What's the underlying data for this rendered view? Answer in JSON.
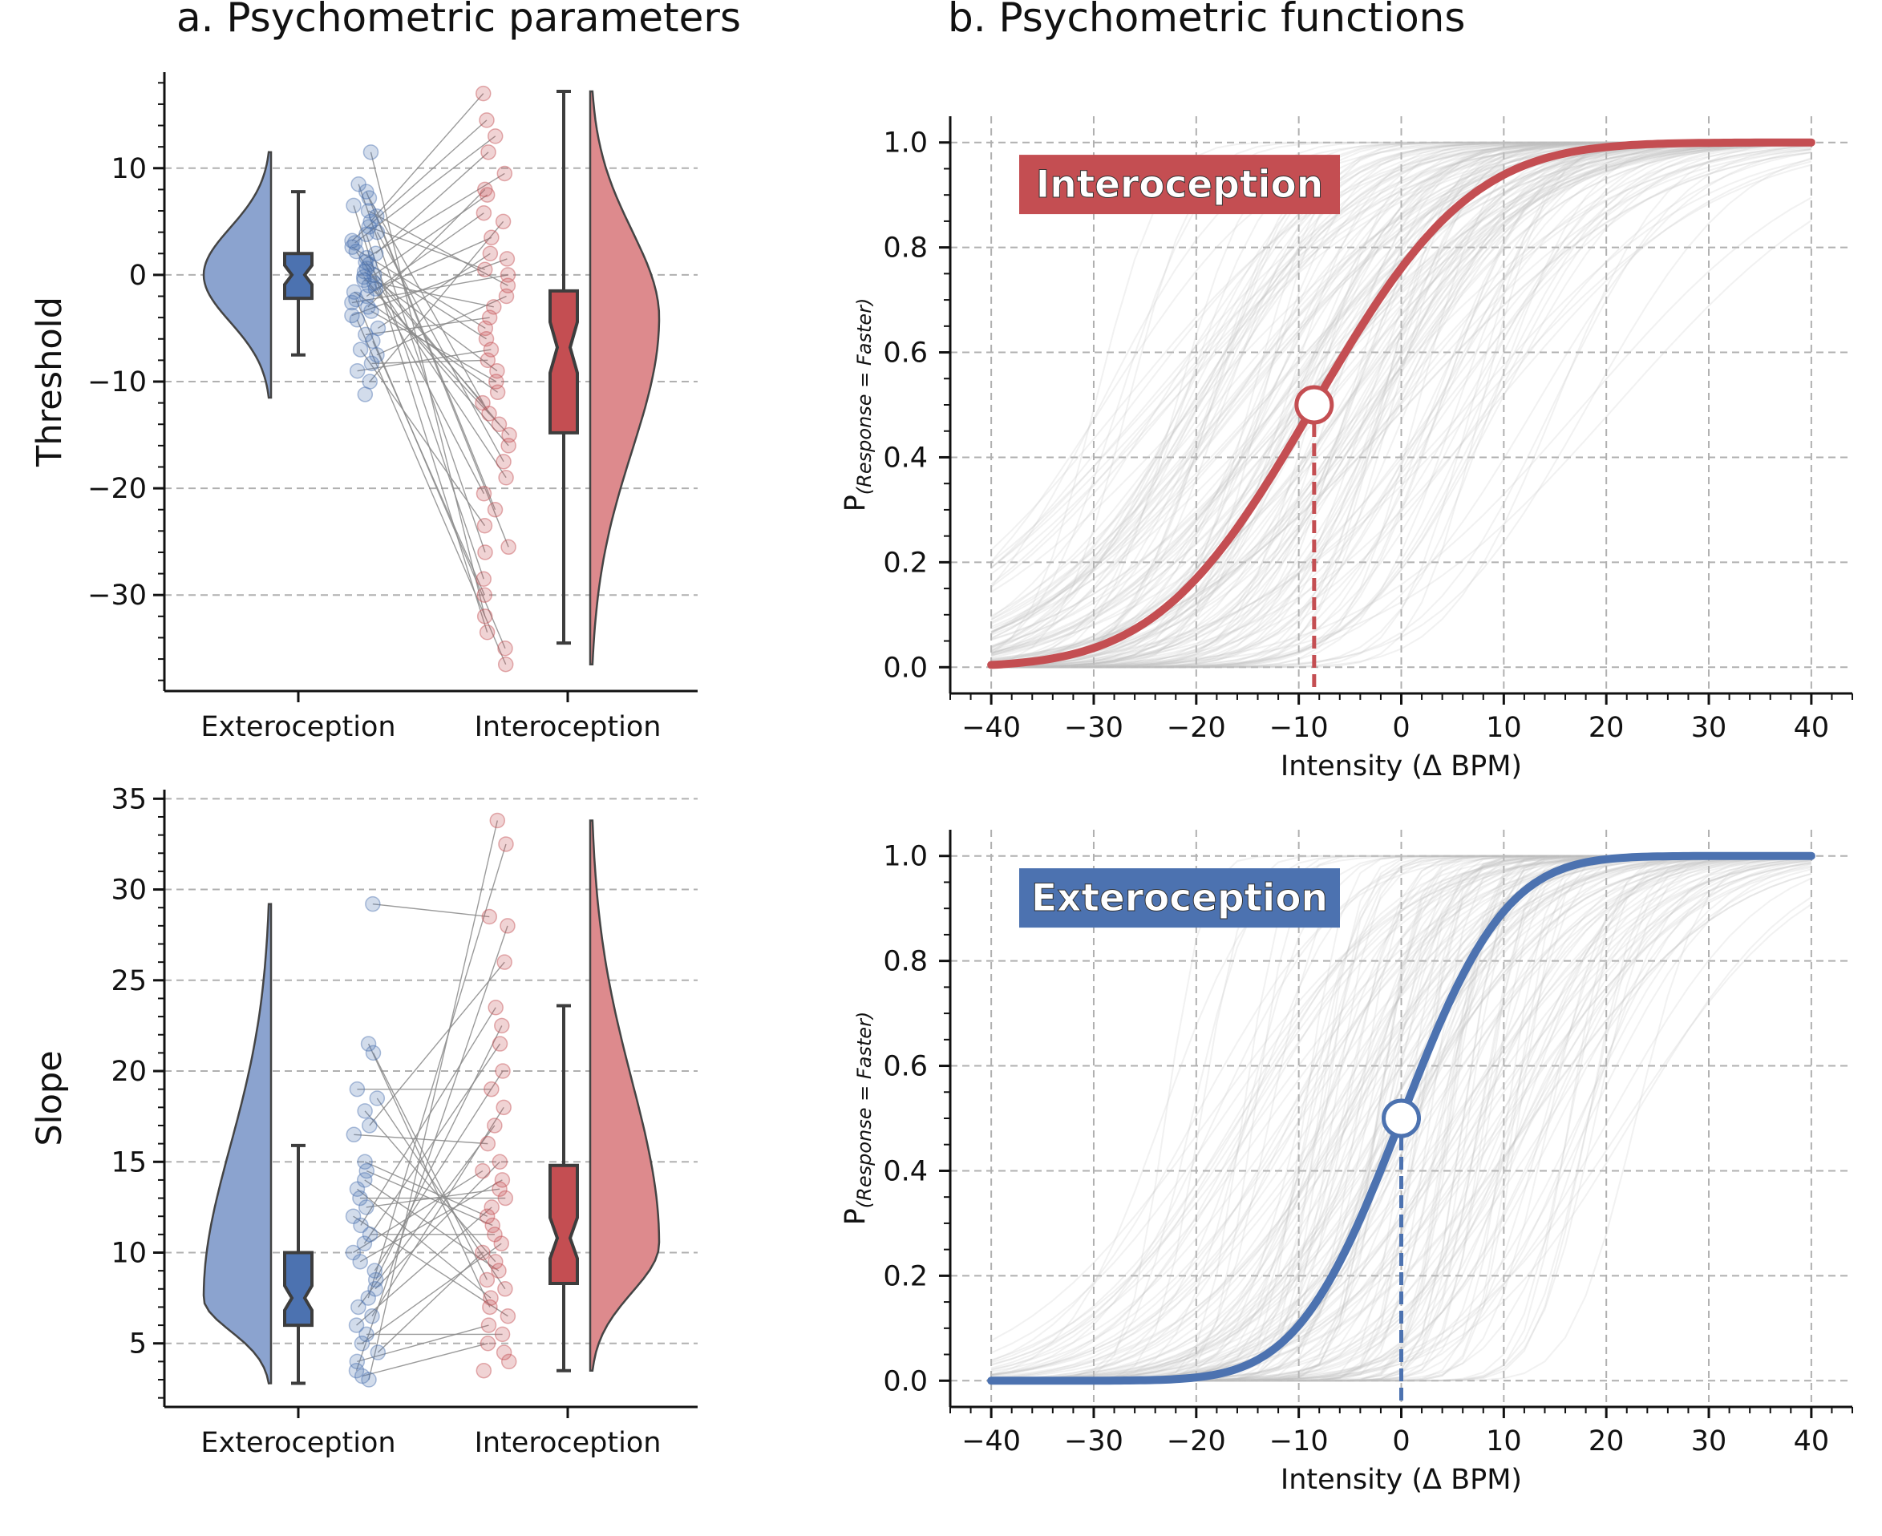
{
  "titles": {
    "left": "a. Psychometric parameters",
    "right": "b. Psychometric functions"
  },
  "colors": {
    "extero": "#4c72b0",
    "intero": "#c44e52",
    "extero_light": "#8ba3cf",
    "intero_light": "#dd8a8d",
    "grid": "#b0b0b0",
    "curves": "#bdbdbd"
  },
  "chart_data": [
    {
      "id": "threshold",
      "type": "raincloud",
      "ylabel": "Threshold",
      "categories": [
        "Exteroception",
        "Interoception"
      ],
      "yticks": [
        -30,
        -20,
        -10,
        0,
        10
      ],
      "ylim": [
        -39,
        19
      ],
      "grid": true,
      "series": [
        {
          "name": "Exteroception",
          "box": {
            "whisker_low": -7.5,
            "q1": -2.2,
            "median": 0.0,
            "q3": 2.0,
            "whisker_high": 7.8
          },
          "violin_range": [
            -11.5,
            11.5
          ],
          "points": [
            11.5,
            8.5,
            7.8,
            7.2,
            6.5,
            6.0,
            5.5,
            5.0,
            4.5,
            4.0,
            3.8,
            3.2,
            3.0,
            2.6,
            2.2,
            2.0,
            1.6,
            1.2,
            1.0,
            0.6,
            0.3,
            0.0,
            -0.2,
            -0.5,
            -0.8,
            -1.0,
            -1.3,
            -1.6,
            -2.0,
            -2.3,
            -2.6,
            -3.0,
            -3.4,
            -3.8,
            -4.2,
            -5.0,
            -5.6,
            -6.2,
            -7.0,
            -7.5,
            -8.3,
            -9.0,
            -10.0,
            -11.2
          ]
        },
        {
          "name": "Interoception",
          "box": {
            "whisker_low": -34.5,
            "q1": -14.8,
            "median": -6.8,
            "q3": -1.5,
            "whisker_high": 17.2
          },
          "violin_range": [
            -36.5,
            17.2
          ],
          "points": [
            17.0,
            14.5,
            13.0,
            11.5,
            9.5,
            8.0,
            7.5,
            5.8,
            5.0,
            3.5,
            2.0,
            1.5,
            0.5,
            0.0,
            -1.0,
            -2.0,
            -3.0,
            -4.0,
            -5.0,
            -6.0,
            -7.0,
            -8.0,
            -9.0,
            -10.0,
            -11.0,
            -12.0,
            -13.0,
            -14.0,
            -15.0,
            -16.0,
            -17.5,
            -19.0,
            -20.5,
            -22.0,
            -23.5,
            -25.5,
            -26.0,
            -28.5,
            -30.0,
            -32.0,
            -33.5,
            -35.0,
            -36.5
          ]
        }
      ]
    },
    {
      "id": "slope",
      "type": "raincloud",
      "ylabel": "Slope",
      "categories": [
        "Exteroception",
        "Interoception"
      ],
      "yticks": [
        5,
        10,
        15,
        20,
        25,
        30,
        35
      ],
      "ylim": [
        1.5,
        35.5
      ],
      "grid": true,
      "series": [
        {
          "name": "Exteroception",
          "box": {
            "whisker_low": 2.8,
            "q1": 6.0,
            "median": 7.5,
            "q3": 10.0,
            "whisker_high": 15.9
          },
          "violin_range": [
            2.8,
            29.2
          ],
          "points": [
            29.2,
            21.5,
            21.0,
            19.0,
            18.5,
            17.8,
            17.0,
            16.5,
            15.0,
            14.5,
            14.0,
            13.5,
            13.0,
            12.5,
            12.0,
            11.5,
            11.0,
            10.5,
            10.0,
            9.5,
            9.0,
            8.5,
            8.0,
            7.5,
            7.0,
            6.5,
            6.0,
            5.5,
            5.0,
            4.5,
            4.0,
            3.5,
            3.2,
            3.0
          ]
        },
        {
          "name": "Interoception",
          "box": {
            "whisker_low": 3.5,
            "q1": 8.3,
            "median": 10.8,
            "q3": 14.8,
            "whisker_high": 23.6
          },
          "violin_range": [
            3.5,
            33.8
          ],
          "points": [
            33.8,
            32.5,
            28.5,
            28.0,
            26.0,
            23.5,
            22.5,
            21.5,
            20.0,
            19.0,
            18.0,
            17.0,
            16.0,
            15.0,
            14.5,
            14.0,
            13.5,
            13.0,
            12.5,
            12.0,
            11.5,
            11.0,
            10.5,
            10.0,
            9.5,
            9.0,
            8.5,
            8.0,
            7.5,
            7.0,
            6.5,
            6.0,
            5.5,
            5.0,
            4.5,
            4.0,
            3.5
          ]
        }
      ]
    },
    {
      "id": "intero-psychometric",
      "type": "line",
      "badge": "Interoception",
      "xlabel": "Intensity (Δ BPM)",
      "ylabel_main": "P",
      "ylabel_sub": "(Response = Faster)",
      "xlim": [
        -44,
        44
      ],
      "ylim": [
        -0.05,
        1.05
      ],
      "xticks": [
        -40,
        -30,
        -20,
        -10,
        0,
        10,
        20,
        30,
        40
      ],
      "yticks": [
        0.0,
        0.2,
        0.4,
        0.6,
        0.8,
        1.0
      ],
      "grid": true,
      "series": [
        {
          "name": "Interoception",
          "threshold": -8.5,
          "slope": 12.0
        }
      ],
      "marker": {
        "x": -8.5,
        "y": 0.5
      }
    },
    {
      "id": "extero-psychometric",
      "type": "line",
      "badge": "Exteroception",
      "xlabel": "Intensity (Δ BPM)",
      "ylabel_main": "P",
      "ylabel_sub": "(Response = Faster)",
      "xlim": [
        -44,
        44
      ],
      "ylim": [
        -0.05,
        1.05
      ],
      "xticks": [
        -40,
        -30,
        -20,
        -10,
        0,
        10,
        20,
        30,
        40
      ],
      "yticks": [
        0.0,
        0.2,
        0.4,
        0.6,
        0.8,
        1.0
      ],
      "grid": true,
      "series": [
        {
          "name": "Exteroception",
          "threshold": 0.0,
          "slope": 8.0
        }
      ],
      "marker": {
        "x": 0.0,
        "y": 0.5
      }
    }
  ]
}
